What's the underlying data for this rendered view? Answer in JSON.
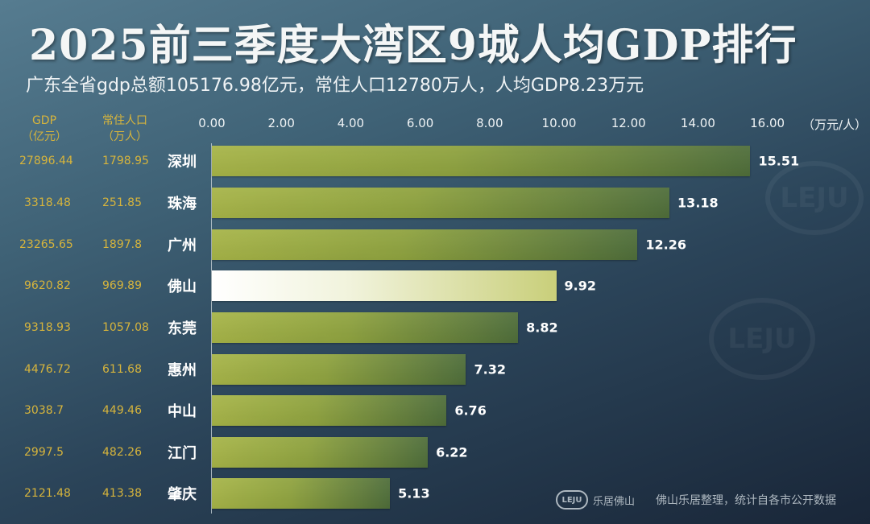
{
  "title": "2025前三季度大湾区9城人均GDP排行",
  "subtitle": "广东全省gdp总额105176.98亿元，常住人口12780万人，人均GDP8.23万元",
  "headers": {
    "gdp": "GDP",
    "gdp_unit": "（亿元）",
    "pop": "常住人口",
    "pop_unit": "（万人）"
  },
  "footer": {
    "logo": "LEJU",
    "brand": "乐居佛山",
    "note": "佛山乐居整理，统计自各市公开数据"
  },
  "colors": {
    "label": "#d6b43c",
    "bar": "#a7b548",
    "highlight": "#ffffff"
  },
  "chart_data": {
    "type": "bar",
    "orientation": "horizontal",
    "title": "2025前三季度大湾区9城人均GDP排行",
    "xlabel": "（万元/人）",
    "xlim": [
      0,
      16
    ],
    "ticks": [
      "0.00",
      "2.00",
      "4.00",
      "6.00",
      "8.00",
      "10.00",
      "12.00",
      "14.00",
      "16.00"
    ],
    "highlight": "佛山",
    "categories": [
      "深圳",
      "珠海",
      "广州",
      "佛山",
      "东莞",
      "惠州",
      "中山",
      "江门",
      "肇庆"
    ],
    "values": [
      15.51,
      13.18,
      12.26,
      9.92,
      8.82,
      7.32,
      6.76,
      6.22,
      5.13
    ],
    "value_labels": [
      "15.51",
      "13.18",
      "12.26",
      "9.92",
      "8.82",
      "7.32",
      "6.76",
      "6.22",
      "5.13"
    ],
    "gdp": [
      "27896.44",
      "3318.48",
      "23265.65",
      "9620.82",
      "9318.93",
      "4476.72",
      "3038.7",
      "2997.5",
      "2121.48"
    ],
    "population": [
      "1798.95",
      "251.85",
      "1897.8",
      "969.89",
      "1057.08",
      "611.68",
      "449.46",
      "482.26",
      "413.38"
    ]
  }
}
